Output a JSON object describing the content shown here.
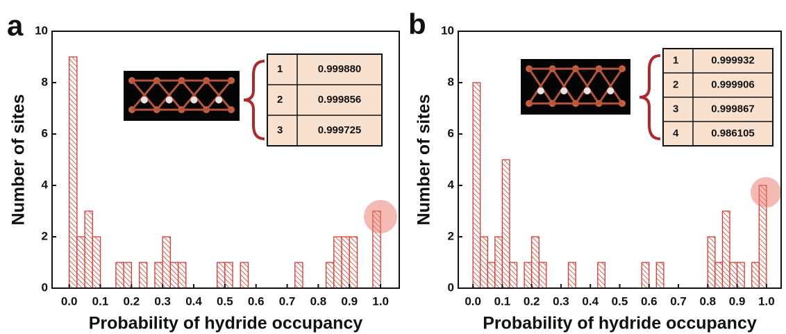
{
  "chart_data": [
    {
      "type": "histogram",
      "panel_label": "a",
      "xlabel": "Probability of hydride occupancy",
      "ylabel": "Number of sites",
      "color": "#d8392b",
      "bins": [
        0,
        0.025,
        0.05,
        0.075,
        0.1,
        0.125,
        0.15,
        0.175,
        0.2,
        0.225,
        0.25,
        0.275,
        0.3,
        0.325,
        0.35,
        0.375,
        0.4,
        0.425,
        0.45,
        0.475,
        0.5,
        0.525,
        0.55,
        0.575,
        0.6,
        0.625,
        0.65,
        0.675,
        0.7,
        0.725,
        0.75,
        0.775,
        0.8,
        0.825,
        0.85,
        0.875,
        0.9,
        0.925,
        0.95,
        0.975,
        1.0
      ],
      "values": [
        9,
        2,
        3,
        2,
        0,
        0,
        1,
        1,
        0,
        1,
        0,
        1,
        2,
        1,
        1,
        0,
        0,
        0,
        0,
        1,
        1,
        0,
        1,
        0,
        0,
        0,
        0,
        0,
        0,
        1,
        0,
        0,
        0,
        1,
        2,
        2,
        2,
        0,
        0,
        3
      ],
      "xlim": [
        -0.055,
        1.06
      ],
      "ylim": [
        0,
        10
      ],
      "xticks": [
        {
          "value": 0,
          "label": "0.0"
        },
        0.1,
        0.2,
        0.3,
        0.4,
        0.5,
        0.6,
        0.7,
        0.8,
        0.9,
        {
          "value": 1,
          "label": "1.0"
        }
      ],
      "yticks": [
        0,
        2,
        4,
        6,
        8,
        10
      ],
      "table": {
        "rows": [
          [
            "1",
            "0.999880"
          ],
          [
            "2",
            "0.999856"
          ],
          [
            "3",
            "0.999725"
          ]
        ]
      }
    },
    {
      "type": "histogram",
      "panel_label": "b",
      "xlabel": "Probability of hydride occupancy",
      "ylabel": "Number of sites",
      "color": "#d8392b",
      "bins": [
        0,
        0.025,
        0.05,
        0.075,
        0.1,
        0.125,
        0.15,
        0.175,
        0.2,
        0.225,
        0.25,
        0.275,
        0.3,
        0.325,
        0.35,
        0.375,
        0.4,
        0.425,
        0.45,
        0.475,
        0.5,
        0.525,
        0.55,
        0.575,
        0.6,
        0.625,
        0.65,
        0.675,
        0.7,
        0.725,
        0.75,
        0.775,
        0.8,
        0.825,
        0.85,
        0.875,
        0.9,
        0.925,
        0.95,
        0.975,
        1.0
      ],
      "values": [
        8,
        2,
        1,
        2,
        5,
        1,
        0,
        1,
        2,
        1,
        0,
        0,
        0,
        1,
        0,
        0,
        0,
        1,
        0,
        0,
        0,
        0,
        0,
        1,
        0,
        1,
        0,
        0,
        0,
        0,
        0,
        0,
        2,
        1,
        3,
        1,
        1,
        0,
        1,
        4
      ],
      "xlim": [
        -0.05,
        1.05
      ],
      "ylim": [
        0,
        10
      ],
      "xticks": [
        {
          "value": 0,
          "label": "0.0"
        },
        0.1,
        0.2,
        0.3,
        0.4,
        0.5,
        0.6,
        0.7,
        0.8,
        0.9,
        {
          "value": 1,
          "label": "1.0"
        }
      ],
      "yticks": [
        0,
        2,
        4,
        6,
        8,
        10
      ],
      "table": {
        "rows": [
          [
            "1",
            "0.999932"
          ],
          [
            "2",
            "0.999906"
          ],
          [
            "3",
            "0.999867"
          ],
          [
            "4",
            "0.986105"
          ]
        ]
      }
    }
  ]
}
